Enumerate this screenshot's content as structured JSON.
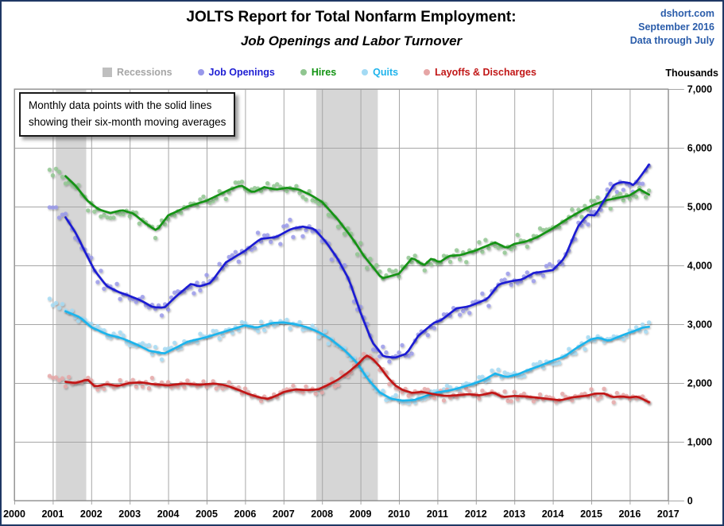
{
  "header": {
    "title": "JOLTS Report for Total Nonfarm Employment:",
    "subtitle": "Job Openings and Labor Turnover",
    "credit": [
      "dshort.com",
      "September 2016",
      "Data through July"
    ]
  },
  "annotation": {
    "line1": "Monthly data points with the solid lines",
    "line2": "showing their six-month moving averages"
  },
  "legend": [
    {
      "label": "Recessions",
      "marker": "square",
      "marker_color": "#bfbfbf",
      "text_color": "#a6a6a6"
    },
    {
      "label": "Job Openings",
      "marker": "dot",
      "marker_color": "#9898ea",
      "text_color": "#1f1fd3"
    },
    {
      "label": "Hires",
      "marker": "dot",
      "marker_color": "#90c690",
      "text_color": "#129312"
    },
    {
      "label": "Quits",
      "marker": "dot",
      "marker_color": "#a3daf4",
      "text_color": "#1fb4ec"
    },
    {
      "label": "Layoffs & Discharges",
      "marker": "dot",
      "marker_color": "#e6a6a6",
      "text_color": "#c11717"
    }
  ],
  "axis": {
    "unit_label": "Thousands",
    "y_tick_labels": [
      "7,000",
      "6,000",
      "5,000",
      "4,000",
      "3,000",
      "2,000",
      "1,000",
      "0"
    ],
    "y_tick_values": [
      7000,
      6000,
      5000,
      4000,
      3000,
      2000,
      1000,
      0
    ],
    "x_tick_labels": [
      "2000",
      "2001",
      "2002",
      "2003",
      "2004",
      "2005",
      "2006",
      "2007",
      "2008",
      "2009",
      "2010",
      "2011",
      "2012",
      "2013",
      "2014",
      "2015",
      "2016",
      "2017"
    ],
    "y_min": 0,
    "y_max": 7000,
    "x_min": 2000,
    "x_max": 2017.45
  },
  "colors": {
    "background": "#ffffff",
    "figure_border": "#1f3864",
    "grid": "#a6a6a6",
    "plot_border": "#8c8c8c",
    "recession_band": "#d6d6d6",
    "credit_text": "#2a5caa"
  },
  "chart_data": {
    "type": "scatter",
    "title": "JOLTS Report for Total Nonfarm Employment: Job Openings and Labor Turnover",
    "unit": "Thousands",
    "x_unit": "decimal year, monthly frequency",
    "data_start": "2000-12",
    "data_end": "2016-07",
    "note": "Dots are monthly data points; solid lines are six-month moving averages (values estimated from gridlines, in thousands)",
    "recessions": [
      [
        2001.08,
        2001.87
      ],
      [
        2007.85,
        2009.45
      ]
    ],
    "ma_line_start": 2001.33,
    "series": [
      {
        "name": "Job Openings",
        "line_color": "#1f1fd3",
        "dot_color": "#9898ea",
        "scatter_noise": 185,
        "seed": 11,
        "ma": [
          [
            2000.92,
            4980
          ],
          [
            2001.33,
            4820
          ],
          [
            2001.6,
            4550
          ],
          [
            2001.9,
            4150
          ],
          [
            2002.1,
            3900
          ],
          [
            2002.4,
            3650
          ],
          [
            2002.7,
            3550
          ],
          [
            2003.0,
            3480
          ],
          [
            2003.3,
            3400
          ],
          [
            2003.6,
            3290
          ],
          [
            2003.9,
            3280
          ],
          [
            2004.2,
            3470
          ],
          [
            2004.6,
            3690
          ],
          [
            2004.8,
            3640
          ],
          [
            2005.1,
            3700
          ],
          [
            2005.5,
            4050
          ],
          [
            2006.0,
            4250
          ],
          [
            2006.4,
            4450
          ],
          [
            2006.8,
            4480
          ],
          [
            2007.2,
            4620
          ],
          [
            2007.5,
            4660
          ],
          [
            2007.8,
            4620
          ],
          [
            2008.1,
            4400
          ],
          [
            2008.4,
            4120
          ],
          [
            2008.7,
            3760
          ],
          [
            2009.0,
            3200
          ],
          [
            2009.3,
            2700
          ],
          [
            2009.6,
            2450
          ],
          [
            2009.9,
            2430
          ],
          [
            2010.2,
            2500
          ],
          [
            2010.5,
            2800
          ],
          [
            2010.9,
            3020
          ],
          [
            2011.1,
            3070
          ],
          [
            2011.5,
            3270
          ],
          [
            2011.8,
            3300
          ],
          [
            2012.0,
            3350
          ],
          [
            2012.3,
            3430
          ],
          [
            2012.6,
            3680
          ],
          [
            2012.9,
            3730
          ],
          [
            2013.2,
            3760
          ],
          [
            2013.5,
            3870
          ],
          [
            2013.8,
            3900
          ],
          [
            2014.0,
            3920
          ],
          [
            2014.3,
            4120
          ],
          [
            2014.65,
            4660
          ],
          [
            2014.9,
            4860
          ],
          [
            2015.1,
            4850
          ],
          [
            2015.4,
            5180
          ],
          [
            2015.6,
            5380
          ],
          [
            2015.8,
            5420
          ],
          [
            2016.0,
            5400
          ],
          [
            2016.1,
            5360
          ],
          [
            2016.3,
            5530
          ],
          [
            2016.5,
            5715
          ],
          [
            2016.58,
            5700
          ]
        ]
      },
      {
        "name": "Hires",
        "line_color": "#129312",
        "dot_color": "#90c690",
        "scatter_noise": 165,
        "seed": 22,
        "ma": [
          [
            2000.92,
            5650
          ],
          [
            2001.33,
            5520
          ],
          [
            2001.6,
            5350
          ],
          [
            2001.9,
            5100
          ],
          [
            2002.2,
            4950
          ],
          [
            2002.5,
            4890
          ],
          [
            2002.8,
            4940
          ],
          [
            2003.1,
            4880
          ],
          [
            2003.4,
            4720
          ],
          [
            2003.7,
            4590
          ],
          [
            2004.0,
            4850
          ],
          [
            2004.5,
            5000
          ],
          [
            2005.0,
            5100
          ],
          [
            2005.6,
            5290
          ],
          [
            2005.9,
            5360
          ],
          [
            2006.2,
            5240
          ],
          [
            2006.5,
            5330
          ],
          [
            2006.8,
            5290
          ],
          [
            2007.1,
            5320
          ],
          [
            2007.4,
            5290
          ],
          [
            2007.7,
            5200
          ],
          [
            2008.0,
            5080
          ],
          [
            2008.4,
            4790
          ],
          [
            2008.8,
            4450
          ],
          [
            2009.1,
            4150
          ],
          [
            2009.35,
            3950
          ],
          [
            2009.55,
            3780
          ],
          [
            2009.8,
            3820
          ],
          [
            2010.0,
            3860
          ],
          [
            2010.35,
            4130
          ],
          [
            2010.65,
            4000
          ],
          [
            2010.85,
            4120
          ],
          [
            2011.05,
            4050
          ],
          [
            2011.3,
            4160
          ],
          [
            2011.6,
            4175
          ],
          [
            2012.0,
            4255
          ],
          [
            2012.5,
            4390
          ],
          [
            2012.8,
            4295
          ],
          [
            2013.0,
            4365
          ],
          [
            2013.3,
            4405
          ],
          [
            2013.6,
            4480
          ],
          [
            2014.0,
            4630
          ],
          [
            2014.4,
            4800
          ],
          [
            2014.8,
            4950
          ],
          [
            2015.1,
            5040
          ],
          [
            2015.4,
            5110
          ],
          [
            2015.7,
            5150
          ],
          [
            2016.0,
            5190
          ],
          [
            2016.25,
            5295
          ],
          [
            2016.4,
            5240
          ],
          [
            2016.58,
            5175
          ]
        ]
      },
      {
        "name": "Quits",
        "line_color": "#1fb4ec",
        "dot_color": "#a3daf4",
        "scatter_noise": 115,
        "seed": 33,
        "ma": [
          [
            2000.92,
            3400
          ],
          [
            2001.33,
            3220
          ],
          [
            2001.7,
            3120
          ],
          [
            2002.0,
            2950
          ],
          [
            2002.4,
            2830
          ],
          [
            2002.8,
            2760
          ],
          [
            2003.2,
            2650
          ],
          [
            2003.5,
            2550
          ],
          [
            2003.9,
            2500
          ],
          [
            2004.5,
            2700
          ],
          [
            2005.0,
            2780
          ],
          [
            2005.5,
            2880
          ],
          [
            2006.0,
            2980
          ],
          [
            2006.3,
            2940
          ],
          [
            2006.7,
            3020
          ],
          [
            2007.0,
            3030
          ],
          [
            2007.3,
            3000
          ],
          [
            2007.6,
            2950
          ],
          [
            2007.9,
            2870
          ],
          [
            2008.2,
            2760
          ],
          [
            2008.6,
            2550
          ],
          [
            2008.9,
            2350
          ],
          [
            2009.2,
            2060
          ],
          [
            2009.5,
            1840
          ],
          [
            2009.8,
            1730
          ],
          [
            2010.1,
            1700
          ],
          [
            2010.4,
            1710
          ],
          [
            2010.7,
            1780
          ],
          [
            2011.0,
            1840
          ],
          [
            2011.3,
            1870
          ],
          [
            2011.6,
            1920
          ],
          [
            2011.9,
            1980
          ],
          [
            2012.2,
            2050
          ],
          [
            2012.5,
            2160
          ],
          [
            2012.8,
            2100
          ],
          [
            2013.1,
            2150
          ],
          [
            2013.4,
            2230
          ],
          [
            2013.7,
            2300
          ],
          [
            2014.0,
            2380
          ],
          [
            2014.3,
            2450
          ],
          [
            2014.65,
            2610
          ],
          [
            2015.0,
            2745
          ],
          [
            2015.2,
            2770
          ],
          [
            2015.45,
            2715
          ],
          [
            2015.8,
            2810
          ],
          [
            2016.1,
            2880
          ],
          [
            2016.35,
            2945
          ],
          [
            2016.58,
            2960
          ]
        ]
      },
      {
        "name": "Layoffs & Discharges",
        "line_color": "#c11717",
        "dot_color": "#e6a6a6",
        "scatter_noise": 110,
        "seed": 44,
        "ma": [
          [
            2000.92,
            2120
          ],
          [
            2001.33,
            2020
          ],
          [
            2001.6,
            2000
          ],
          [
            2001.9,
            2060
          ],
          [
            2002.1,
            1940
          ],
          [
            2002.4,
            1980
          ],
          [
            2002.7,
            1950
          ],
          [
            2003.0,
            2000
          ],
          [
            2003.3,
            2010
          ],
          [
            2003.6,
            1980
          ],
          [
            2004.0,
            1960
          ],
          [
            2004.4,
            1990
          ],
          [
            2004.8,
            1970
          ],
          [
            2005.2,
            1990
          ],
          [
            2005.5,
            1960
          ],
          [
            2005.8,
            1890
          ],
          [
            2006.1,
            1810
          ],
          [
            2006.4,
            1750
          ],
          [
            2006.6,
            1730
          ],
          [
            2006.8,
            1780
          ],
          [
            2007.0,
            1845
          ],
          [
            2007.3,
            1890
          ],
          [
            2007.6,
            1880
          ],
          [
            2007.9,
            1890
          ],
          [
            2008.1,
            1950
          ],
          [
            2008.4,
            2050
          ],
          [
            2008.7,
            2190
          ],
          [
            2008.95,
            2330
          ],
          [
            2009.15,
            2470
          ],
          [
            2009.3,
            2420
          ],
          [
            2009.5,
            2280
          ],
          [
            2009.7,
            2100
          ],
          [
            2009.9,
            1960
          ],
          [
            2010.1,
            1880
          ],
          [
            2010.35,
            1830
          ],
          [
            2010.6,
            1850
          ],
          [
            2010.9,
            1810
          ],
          [
            2011.2,
            1780
          ],
          [
            2011.5,
            1790
          ],
          [
            2011.8,
            1810
          ],
          [
            2012.1,
            1790
          ],
          [
            2012.45,
            1840
          ],
          [
            2012.7,
            1760
          ],
          [
            2013.0,
            1780
          ],
          [
            2013.3,
            1770
          ],
          [
            2013.6,
            1750
          ],
          [
            2014.0,
            1720
          ],
          [
            2014.2,
            1705
          ],
          [
            2014.5,
            1755
          ],
          [
            2014.9,
            1785
          ],
          [
            2015.1,
            1820
          ],
          [
            2015.35,
            1820
          ],
          [
            2015.55,
            1760
          ],
          [
            2015.8,
            1770
          ],
          [
            2016.0,
            1755
          ],
          [
            2016.2,
            1770
          ],
          [
            2016.45,
            1690
          ],
          [
            2016.58,
            1645
          ]
        ]
      }
    ]
  }
}
